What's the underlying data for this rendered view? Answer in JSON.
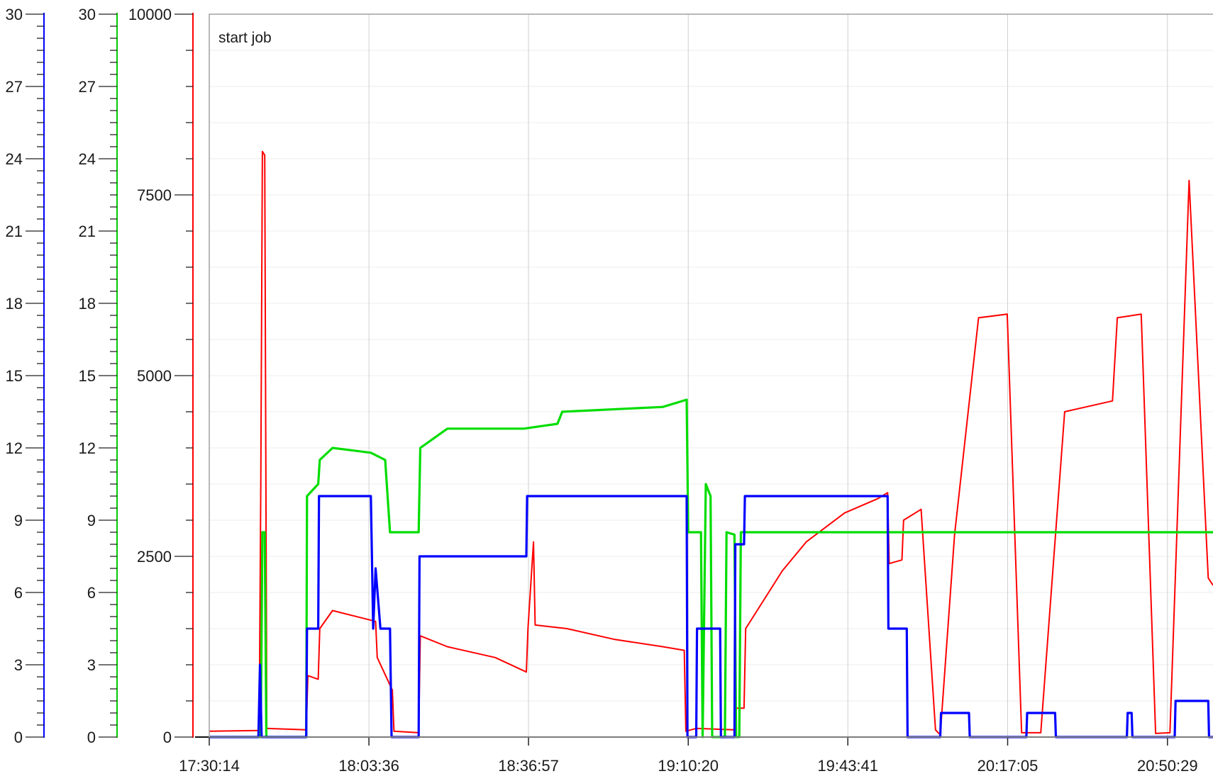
{
  "chart_data": {
    "type": "line",
    "annotation": "start job",
    "x_ticks": [
      "17:30:14",
      "18:03:36",
      "18:36:57",
      "19:10:20",
      "19:43:41",
      "20:17:05",
      "20:50:29"
    ],
    "x_range": [
      "17:30:14",
      "21:00:00"
    ],
    "grid": true,
    "axes": [
      {
        "id": "blue-axis",
        "color": "#0000ff",
        "range": [
          0,
          30
        ],
        "ticks": [
          "0",
          "3",
          "6",
          "9",
          "12",
          "15",
          "18",
          "21",
          "24",
          "27",
          "30"
        ]
      },
      {
        "id": "green-axis",
        "color": "#00cc00",
        "range": [
          0,
          30
        ],
        "ticks": [
          "0",
          "3",
          "6",
          "9",
          "12",
          "15",
          "18",
          "21",
          "24",
          "27",
          "30"
        ]
      },
      {
        "id": "red-axis",
        "color": "#ff0000",
        "range": [
          0,
          10000
        ],
        "ticks": [
          "0",
          "2500",
          "5000",
          "7500",
          "10000"
        ]
      }
    ],
    "series": [
      {
        "color": "#ff0000",
        "axis": "red-axis",
        "points": [
          [
            "17:30:14",
            80
          ],
          [
            "17:40:40",
            90
          ],
          [
            "17:41:00",
            3400
          ],
          [
            "17:41:20",
            8100
          ],
          [
            "17:41:50",
            8050
          ],
          [
            "17:42:15",
            120
          ],
          [
            "17:50:30",
            100
          ],
          [
            "17:50:50",
            850
          ],
          [
            "17:53:00",
            800
          ],
          [
            "17:53:20",
            1500
          ],
          [
            "17:56:00",
            1750
          ],
          [
            "18:02:00",
            1650
          ],
          [
            "18:05:00",
            1600
          ],
          [
            "18:05:20",
            1100
          ],
          [
            "18:08:30",
            650
          ],
          [
            "18:08:50",
            80
          ],
          [
            "18:14:00",
            60
          ],
          [
            "18:14:20",
            1400
          ],
          [
            "18:20:00",
            1250
          ],
          [
            "18:30:00",
            1100
          ],
          [
            "18:36:30",
            900
          ],
          [
            "18:36:50",
            1500
          ],
          [
            "18:38:00",
            2700
          ],
          [
            "18:38:20",
            1550
          ],
          [
            "18:45:00",
            1500
          ],
          [
            "18:55:00",
            1350
          ],
          [
            "19:05:00",
            1250
          ],
          [
            "19:09:30",
            1200
          ],
          [
            "19:09:50",
            80
          ],
          [
            "19:12:00",
            120
          ],
          [
            "19:20:00",
            100
          ],
          [
            "19:20:20",
            400
          ],
          [
            "19:22:00",
            400
          ],
          [
            "19:22:20",
            1500
          ],
          [
            "19:30:00",
            2300
          ],
          [
            "19:35:00",
            2700
          ],
          [
            "19:43:00",
            3100
          ],
          [
            "19:50:00",
            3300
          ],
          [
            "19:52:00",
            3380
          ],
          [
            "19:52:20",
            2400
          ],
          [
            "19:55:00",
            2450
          ],
          [
            "19:55:20",
            3000
          ],
          [
            "19:59:00",
            3150
          ],
          [
            "20:02:00",
            100
          ],
          [
            "20:03:00",
            30
          ],
          [
            "20:06:00",
            2800
          ],
          [
            "20:11:00",
            5800
          ],
          [
            "20:17:00",
            5850
          ],
          [
            "20:20:00",
            60
          ],
          [
            "20:24:00",
            60
          ],
          [
            "20:29:00",
            4500
          ],
          [
            "20:39:00",
            4650
          ],
          [
            "20:40:00",
            5800
          ],
          [
            "20:45:00",
            5850
          ],
          [
            "20:48:00",
            50
          ],
          [
            "20:51:00",
            60
          ],
          [
            "20:55:00",
            7700
          ],
          [
            "20:59:00",
            2200
          ],
          [
            "21:00:00",
            2100
          ]
        ]
      },
      {
        "color": "#00dd00",
        "axis": "green-axis",
        "points": [
          [
            "17:30:14",
            0
          ],
          [
            "17:41:00",
            0
          ],
          [
            "17:41:20",
            8.5
          ],
          [
            "17:41:50",
            8.5
          ],
          [
            "17:42:10",
            0
          ],
          [
            "17:50:30",
            0
          ],
          [
            "17:50:40",
            10
          ],
          [
            "17:53:00",
            10.5
          ],
          [
            "17:53:20",
            11.5
          ],
          [
            "17:56:00",
            12
          ],
          [
            "18:04:00",
            11.8
          ],
          [
            "18:07:00",
            11.5
          ],
          [
            "18:08:00",
            8.5
          ],
          [
            "18:14:00",
            8.5
          ],
          [
            "18:14:20",
            12
          ],
          [
            "18:20:00",
            12.8
          ],
          [
            "18:30:00",
            12.8
          ],
          [
            "18:36:00",
            12.8
          ],
          [
            "18:43:00",
            13
          ],
          [
            "18:44:00",
            13.5
          ],
          [
            "19:05:00",
            13.7
          ],
          [
            "19:10:00",
            14
          ],
          [
            "19:10:20",
            8.5
          ],
          [
            "19:13:00",
            8.5
          ],
          [
            "19:13:20",
            0
          ],
          [
            "19:14:00",
            10.5
          ],
          [
            "19:15:00",
            10
          ],
          [
            "19:15:20",
            0
          ],
          [
            "19:18:00",
            0
          ],
          [
            "19:18:20",
            8.5
          ],
          [
            "19:20:00",
            8.4
          ],
          [
            "19:20:20",
            0
          ],
          [
            "19:21:00",
            0
          ],
          [
            "19:21:20",
            8.5
          ],
          [
            "21:00:00",
            8.5
          ]
        ]
      },
      {
        "color": "#0000ff",
        "axis": "blue-axis",
        "points": [
          [
            "17:30:14",
            0
          ],
          [
            "17:40:30",
            0
          ],
          [
            "17:40:50",
            3
          ],
          [
            "17:41:10",
            0
          ],
          [
            "17:50:30",
            0
          ],
          [
            "17:50:40",
            4.5
          ],
          [
            "17:53:00",
            4.5
          ],
          [
            "17:53:10",
            10
          ],
          [
            "18:04:00",
            10
          ],
          [
            "18:04:30",
            4.5
          ],
          [
            "18:05:00",
            7
          ],
          [
            "18:06:00",
            4.5
          ],
          [
            "18:08:00",
            4.5
          ],
          [
            "18:08:20",
            0
          ],
          [
            "18:14:00",
            0
          ],
          [
            "18:14:10",
            7.5
          ],
          [
            "18:36:30",
            7.5
          ],
          [
            "18:36:40",
            10
          ],
          [
            "19:10:00",
            10
          ],
          [
            "19:10:10",
            0
          ],
          [
            "19:12:00",
            0
          ],
          [
            "19:12:10",
            4.5
          ],
          [
            "19:17:00",
            4.5
          ],
          [
            "19:17:10",
            0
          ],
          [
            "19:20:00",
            0
          ],
          [
            "19:20:10",
            8
          ],
          [
            "19:22:00",
            8
          ],
          [
            "19:22:10",
            10
          ],
          [
            "19:30:00",
            10
          ],
          [
            "19:52:00",
            10
          ],
          [
            "19:52:10",
            4.5
          ],
          [
            "19:56:00",
            4.5
          ],
          [
            "19:56:10",
            0
          ],
          [
            "20:03:00",
            0
          ],
          [
            "20:03:10",
            1
          ],
          [
            "20:09:00",
            1
          ],
          [
            "20:09:10",
            0
          ],
          [
            "20:21:00",
            0
          ],
          [
            "20:21:10",
            1
          ],
          [
            "20:27:00",
            1
          ],
          [
            "20:27:10",
            0
          ],
          [
            "20:42:00",
            0
          ],
          [
            "20:42:10",
            1
          ],
          [
            "20:43:00",
            1
          ],
          [
            "20:43:10",
            0
          ],
          [
            "20:52:00",
            0
          ],
          [
            "20:52:10",
            1.5
          ],
          [
            "20:59:00",
            1.5
          ],
          [
            "20:59:10",
            0
          ],
          [
            "21:00:00",
            0
          ]
        ]
      }
    ]
  }
}
